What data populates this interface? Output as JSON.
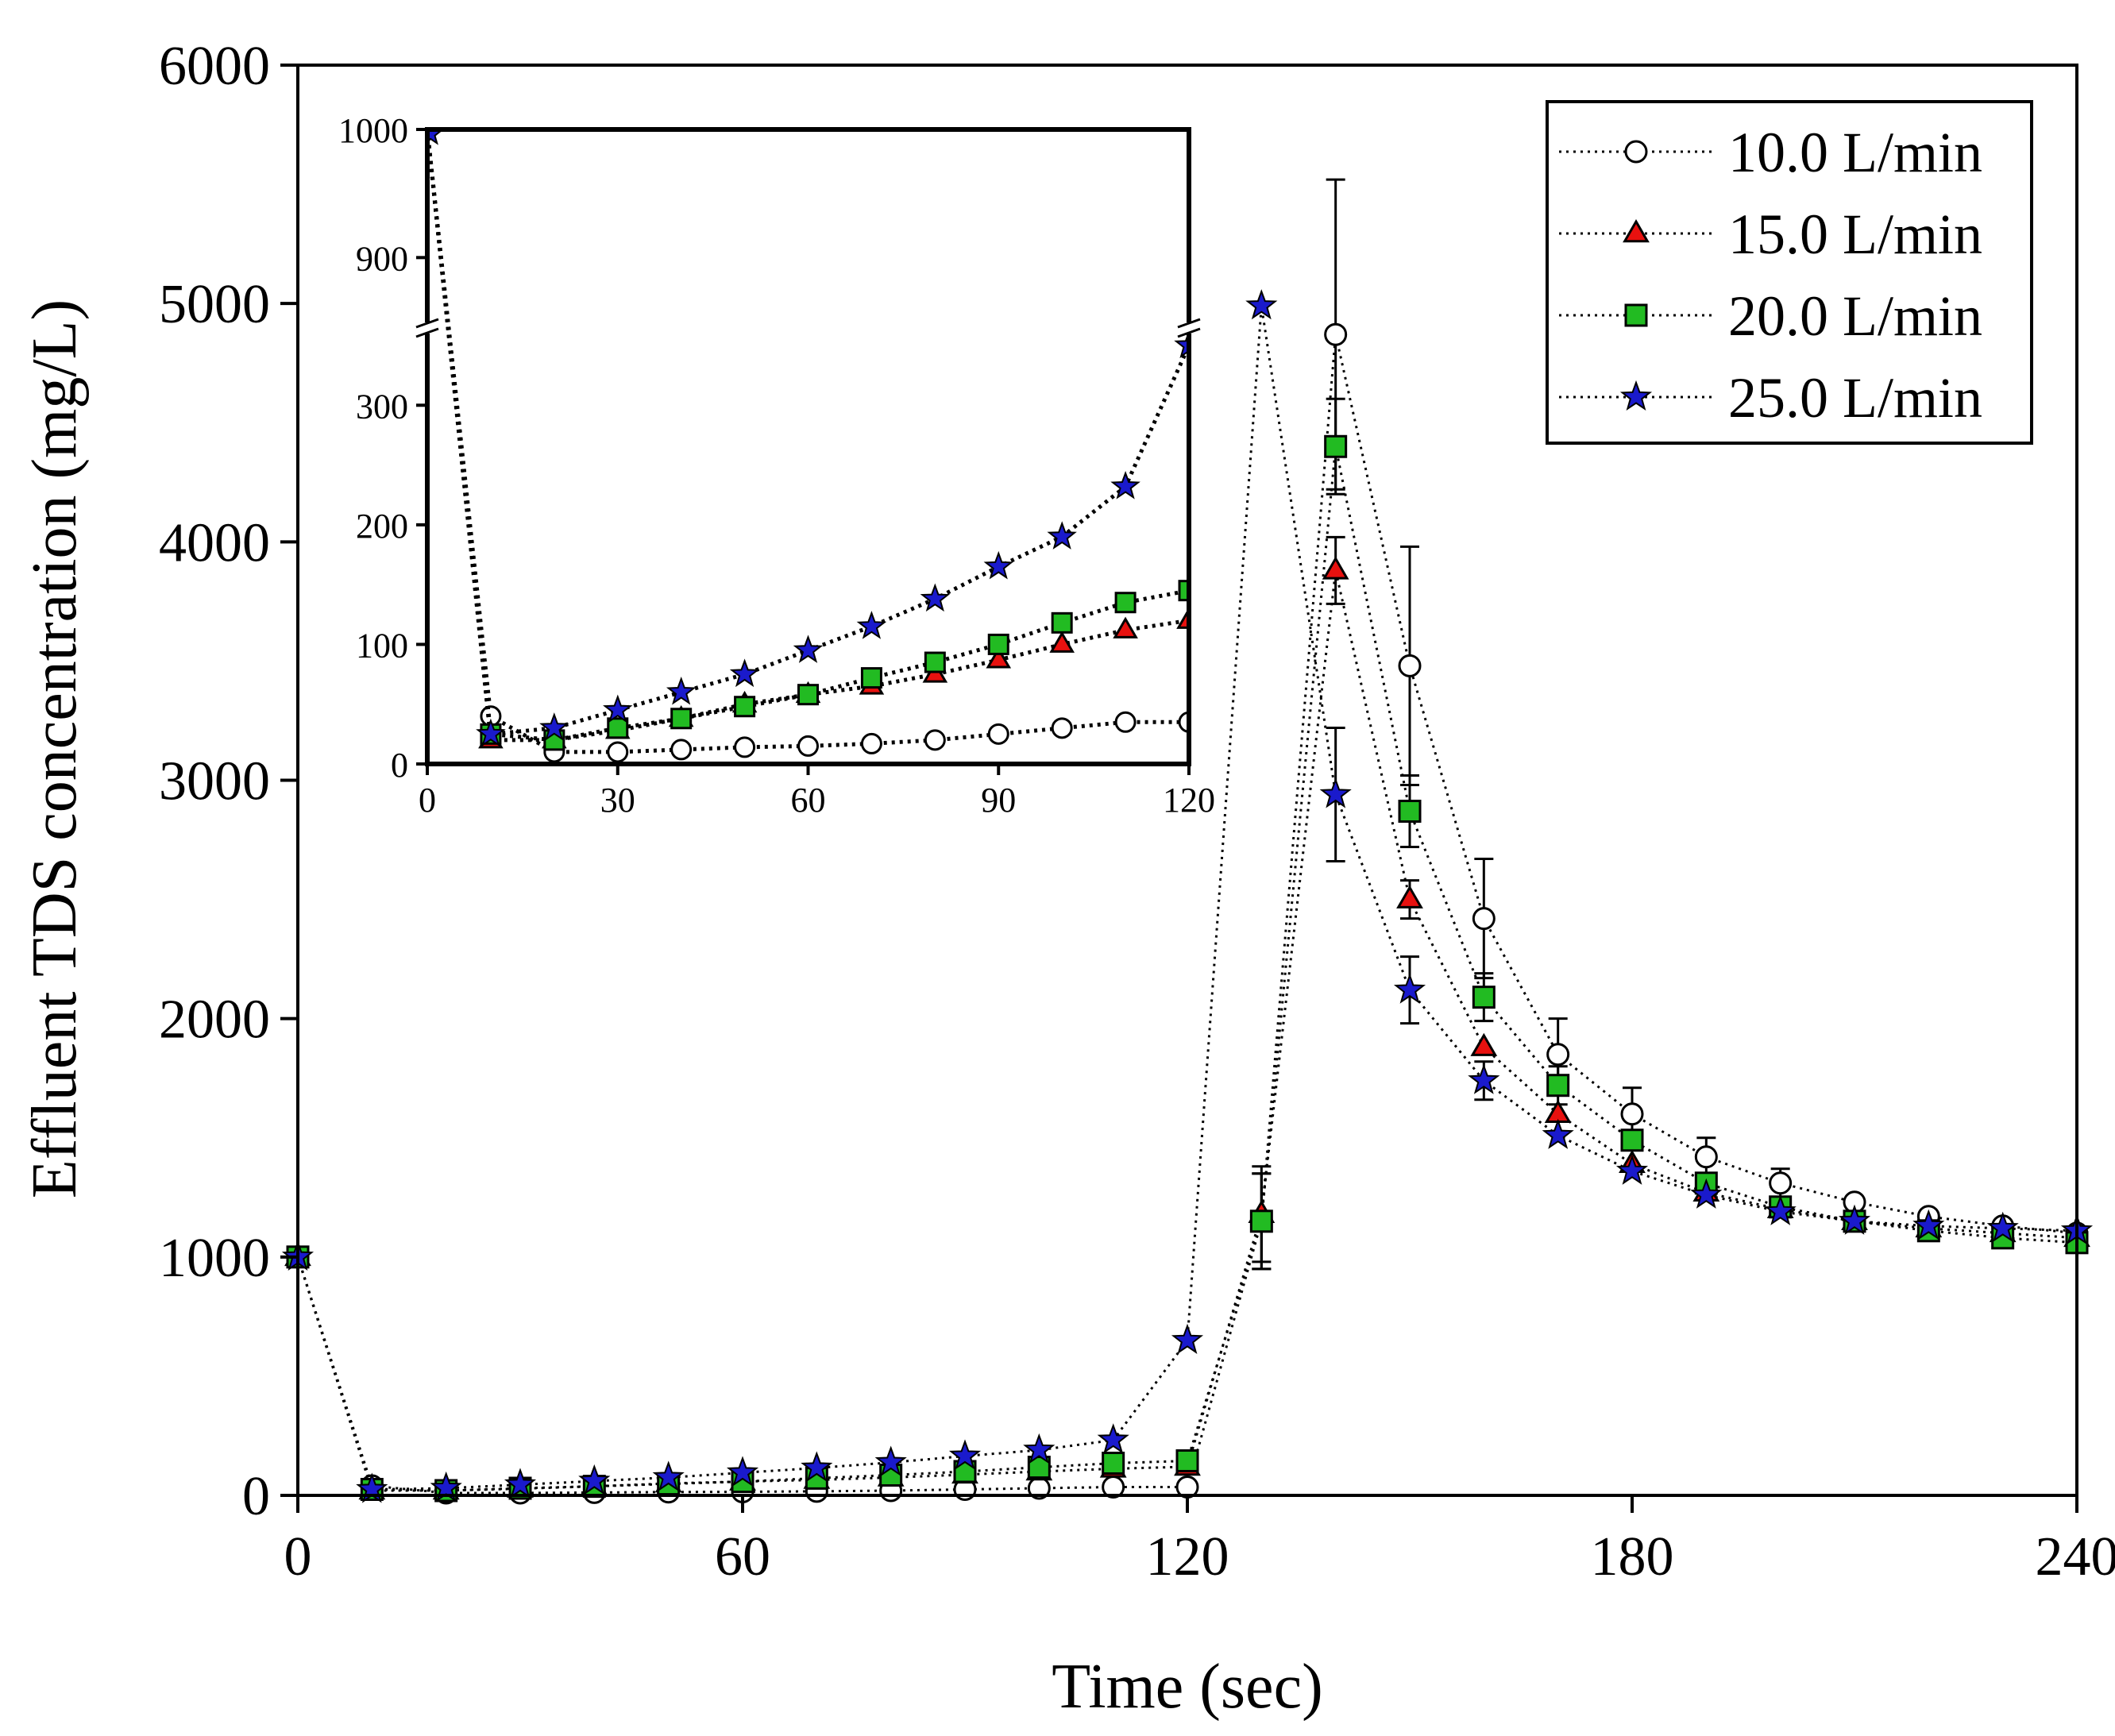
{
  "chart_data": {
    "type": "line",
    "xlabel": "Time (sec)",
    "ylabel": "Effluent TDS concentration (mg/L)",
    "xlim": [
      0,
      240
    ],
    "ylim": [
      0,
      6000
    ],
    "xticks": [
      0,
      60,
      120,
      180,
      240
    ],
    "yticks": [
      0,
      1000,
      2000,
      3000,
      4000,
      5000,
      6000
    ],
    "grid": false,
    "legend_position": "top-right",
    "series": [
      {
        "name": "10.0 L/min",
        "marker": "circle-open",
        "color": "#ffffff",
        "x": [
          0,
          10,
          20,
          30,
          40,
          50,
          60,
          70,
          80,
          90,
          100,
          110,
          120,
          130,
          140,
          150,
          160,
          170,
          180,
          190,
          200,
          210,
          220,
          230,
          240
        ],
        "values": [
          1000,
          40,
          10,
          10,
          12,
          14,
          15,
          17,
          20,
          25,
          30,
          35,
          35,
          1150,
          4870,
          3480,
          2420,
          1850,
          1600,
          1420,
          1310,
          1230,
          1170,
          1130,
          1100
        ],
        "errors": [
          0,
          0,
          0,
          0,
          0,
          0,
          0,
          0,
          0,
          0,
          0,
          0,
          0,
          200,
          650,
          500,
          250,
          150,
          110,
          80,
          60,
          0,
          0,
          0,
          0
        ]
      },
      {
        "name": "15.0 L/min",
        "marker": "triangle",
        "color": "#e8110f",
        "x": [
          0,
          10,
          20,
          30,
          40,
          50,
          60,
          70,
          80,
          90,
          100,
          110,
          120,
          130,
          140,
          150,
          160,
          170,
          180,
          190,
          200,
          210,
          220,
          230,
          240
        ],
        "values": [
          1000,
          20,
          20,
          28,
          38,
          50,
          58,
          65,
          75,
          87,
          100,
          112,
          120,
          1180,
          3880,
          2500,
          1880,
          1600,
          1390,
          1270,
          1200,
          1150,
          1120,
          1100,
          1080
        ],
        "errors": [
          0,
          0,
          0,
          0,
          0,
          0,
          0,
          0,
          0,
          0,
          0,
          0,
          0,
          200,
          140,
          80,
          0,
          0,
          0,
          0,
          0,
          0,
          0,
          0,
          0
        ]
      },
      {
        "name": "20.0 L/min",
        "marker": "square",
        "color": "#22bb22",
        "x": [
          0,
          10,
          20,
          30,
          40,
          50,
          60,
          70,
          80,
          90,
          100,
          110,
          120,
          130,
          140,
          150,
          160,
          170,
          180,
          190,
          200,
          210,
          220,
          230,
          240
        ],
        "values": [
          1000,
          25,
          20,
          30,
          38,
          48,
          58,
          72,
          85,
          100,
          118,
          135,
          145,
          1150,
          4400,
          2870,
          2090,
          1720,
          1490,
          1310,
          1210,
          1150,
          1110,
          1080,
          1060
        ],
        "errors": [
          0,
          0,
          0,
          0,
          0,
          0,
          0,
          0,
          0,
          0,
          0,
          0,
          0,
          200,
          200,
          150,
          100,
          80,
          0,
          0,
          0,
          0,
          0,
          0,
          0
        ]
      },
      {
        "name": "25.0 L/min",
        "marker": "star",
        "color": "#1a1acc",
        "x": [
          0,
          10,
          20,
          30,
          40,
          50,
          60,
          70,
          80,
          90,
          100,
          110,
          120,
          130,
          140,
          150,
          160,
          170,
          180,
          190,
          200,
          210,
          220,
          230,
          240
        ],
        "values": [
          1000,
          25,
          30,
          45,
          60,
          75,
          95,
          115,
          138,
          165,
          190,
          232,
          650,
          4990,
          2940,
          2120,
          1740,
          1510,
          1360,
          1260,
          1190,
          1150,
          1130,
          1120,
          1110
        ],
        "errors": [
          0,
          0,
          0,
          0,
          0,
          0,
          0,
          0,
          0,
          0,
          0,
          0,
          0,
          0,
          280,
          140,
          80,
          0,
          0,
          0,
          0,
          0,
          0,
          0,
          0
        ]
      }
    ],
    "inset": {
      "xlim": [
        0,
        120
      ],
      "xticks": [
        0,
        30,
        60,
        90,
        120
      ],
      "ylim_lower": [
        0,
        350
      ],
      "ylim_upper": [
        850,
        1000
      ],
      "yticks_lower": [
        0,
        100,
        200,
        300
      ],
      "yticks_upper": [
        900,
        1000
      ],
      "axis_break": true
    }
  }
}
